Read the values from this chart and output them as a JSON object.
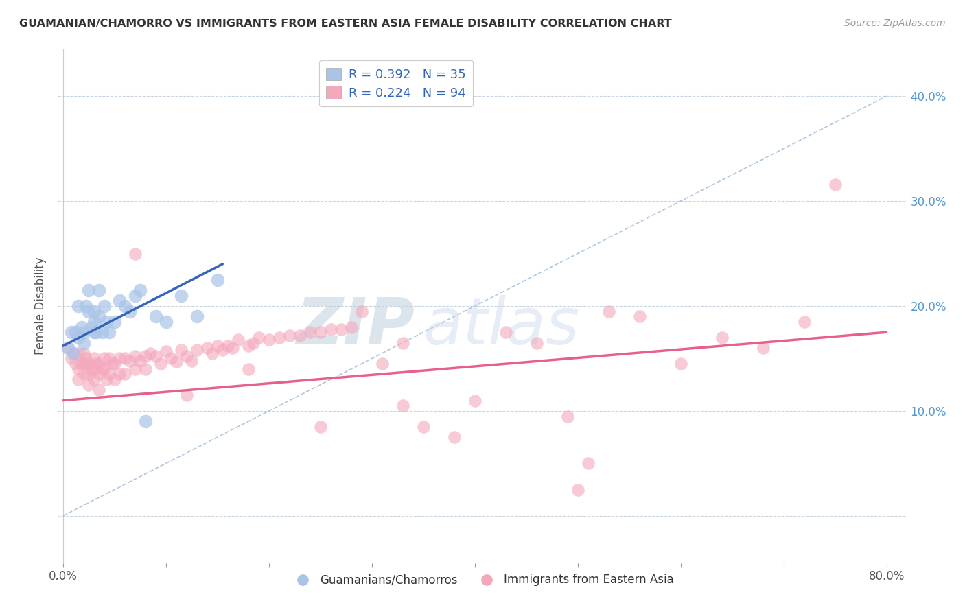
{
  "title": "GUAMANIAN/CHAMORRO VS IMMIGRANTS FROM EASTERN ASIA FEMALE DISABILITY CORRELATION CHART",
  "source": "Source: ZipAtlas.com",
  "ylabel": "Female Disability",
  "xlim": [
    -0.005,
    0.82
  ],
  "ylim": [
    -0.045,
    0.445
  ],
  "xticks": [
    0.0,
    0.8
  ],
  "xtick_labels": [
    "0.0%",
    "80.0%"
  ],
  "ytick_positions": [
    0.0,
    0.1,
    0.2,
    0.3,
    0.4
  ],
  "ytick_labels_right": [
    "",
    "10.0%",
    "20.0%",
    "30.0%",
    "40.0%"
  ],
  "blue_color": "#aac4e8",
  "pink_color": "#f4a8bc",
  "blue_line_color": "#3366bb",
  "pink_line_color": "#e8608a",
  "ref_line_color": "#9ab8d8",
  "grid_color": "#c8d4e0",
  "watermark_color": "#c8d8ec",
  "legend_R1": "R = 0.392",
  "legend_N1": "N = 35",
  "legend_R2": "R = 0.224",
  "legend_N2": "N = 94",
  "blue_scatter_x": [
    0.005,
    0.008,
    0.01,
    0.012,
    0.015,
    0.015,
    0.018,
    0.02,
    0.02,
    0.022,
    0.025,
    0.025,
    0.028,
    0.03,
    0.03,
    0.03,
    0.032,
    0.035,
    0.035,
    0.038,
    0.04,
    0.042,
    0.045,
    0.05,
    0.055,
    0.06,
    0.065,
    0.07,
    0.075,
    0.08,
    0.09,
    0.1,
    0.115,
    0.13,
    0.15
  ],
  "blue_scatter_y": [
    0.16,
    0.175,
    0.155,
    0.175,
    0.2,
    0.17,
    0.18,
    0.175,
    0.165,
    0.2,
    0.215,
    0.195,
    0.18,
    0.175,
    0.185,
    0.195,
    0.175,
    0.215,
    0.19,
    0.175,
    0.2,
    0.185,
    0.175,
    0.185,
    0.205,
    0.2,
    0.195,
    0.21,
    0.215,
    0.09,
    0.19,
    0.185,
    0.21,
    0.19,
    0.225
  ],
  "pink_scatter_x": [
    0.005,
    0.008,
    0.01,
    0.012,
    0.015,
    0.015,
    0.015,
    0.018,
    0.02,
    0.02,
    0.02,
    0.022,
    0.025,
    0.025,
    0.025,
    0.028,
    0.03,
    0.03,
    0.03,
    0.032,
    0.035,
    0.035,
    0.035,
    0.038,
    0.04,
    0.04,
    0.042,
    0.045,
    0.045,
    0.048,
    0.05,
    0.05,
    0.055,
    0.055,
    0.06,
    0.06,
    0.065,
    0.07,
    0.07,
    0.075,
    0.08,
    0.08,
    0.085,
    0.09,
    0.095,
    0.1,
    0.105,
    0.11,
    0.115,
    0.12,
    0.125,
    0.13,
    0.14,
    0.145,
    0.15,
    0.155,
    0.16,
    0.165,
    0.17,
    0.18,
    0.185,
    0.19,
    0.2,
    0.21,
    0.22,
    0.23,
    0.24,
    0.25,
    0.26,
    0.27,
    0.28,
    0.29,
    0.31,
    0.33,
    0.35,
    0.38,
    0.4,
    0.43,
    0.46,
    0.49,
    0.51,
    0.53,
    0.56,
    0.6,
    0.64,
    0.68,
    0.72,
    0.75,
    0.5,
    0.33,
    0.25,
    0.18,
    0.12,
    0.07
  ],
  "pink_scatter_y": [
    0.16,
    0.15,
    0.155,
    0.145,
    0.155,
    0.14,
    0.13,
    0.145,
    0.155,
    0.145,
    0.135,
    0.15,
    0.145,
    0.135,
    0.125,
    0.14,
    0.15,
    0.14,
    0.13,
    0.145,
    0.145,
    0.135,
    0.12,
    0.14,
    0.15,
    0.14,
    0.13,
    0.15,
    0.135,
    0.145,
    0.145,
    0.13,
    0.15,
    0.135,
    0.15,
    0.135,
    0.148,
    0.152,
    0.14,
    0.148,
    0.152,
    0.14,
    0.155,
    0.152,
    0.145,
    0.157,
    0.15,
    0.147,
    0.158,
    0.152,
    0.148,
    0.158,
    0.16,
    0.155,
    0.162,
    0.158,
    0.162,
    0.16,
    0.168,
    0.162,
    0.165,
    0.17,
    0.168,
    0.17,
    0.172,
    0.172,
    0.175,
    0.175,
    0.178,
    0.178,
    0.18,
    0.195,
    0.145,
    0.165,
    0.085,
    0.075,
    0.11,
    0.175,
    0.165,
    0.095,
    0.05,
    0.195,
    0.19,
    0.145,
    0.17,
    0.16,
    0.185,
    0.316,
    0.025,
    0.105,
    0.085,
    0.14,
    0.115,
    0.25
  ],
  "blue_trend_x": [
    0.0,
    0.155
  ],
  "blue_trend_y": [
    0.162,
    0.24
  ],
  "pink_trend_x": [
    0.0,
    0.8
  ],
  "pink_trend_y": [
    0.11,
    0.175
  ],
  "ref_line_x": [
    0.0,
    0.8
  ],
  "ref_line_y": [
    0.0,
    0.4
  ]
}
